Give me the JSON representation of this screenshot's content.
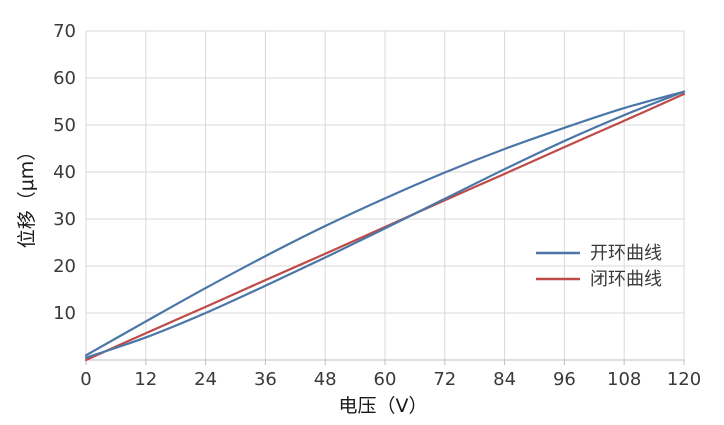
{
  "chart_data": {
    "type": "line",
    "xlabel": "电压（V）",
    "ylabel": "位移（μm）",
    "xlim": [
      0,
      120
    ],
    "ylim": [
      0,
      70
    ],
    "xticks": [
      "0",
      "12",
      "24",
      "36",
      "48",
      "60",
      "72",
      "84",
      "96",
      "108",
      "120"
    ],
    "yticks": [
      "10",
      "20",
      "30",
      "40",
      "50",
      "60",
      "70"
    ],
    "grid": true,
    "legend_position": "right",
    "series": [
      {
        "name": "开环曲线",
        "color": "#4a76a8",
        "loop": true,
        "x": [
          0,
          12,
          24,
          36,
          48,
          60,
          72,
          84,
          96,
          108,
          120,
          108,
          96,
          84,
          72,
          60,
          48,
          36,
          24,
          12,
          0
        ],
        "y": [
          0.5,
          4.8,
          10,
          15.8,
          21.8,
          28,
          34.3,
          40.6,
          46.6,
          52.1,
          57.1,
          53.6,
          49.4,
          44.9,
          39.9,
          34.4,
          28.5,
          22.1,
          15.3,
          8.2,
          1
        ],
        "values": [
          0.5,
          4.8,
          10,
          15.8,
          21.8,
          28,
          34.3,
          40.6,
          46.6,
          52.1,
          57.1,
          53.6,
          49.4,
          44.9,
          39.9,
          34.4,
          28.5,
          22.1,
          15.3,
          8.2,
          1
        ]
      },
      {
        "name": "闭环曲线",
        "color": "#be4b48",
        "x": [
          0,
          12,
          24,
          36,
          48,
          60,
          72,
          84,
          96,
          108,
          120
        ],
        "y": [
          0,
          5.7,
          11.3,
          17,
          22.6,
          28.3,
          34,
          39.6,
          45.3,
          50.9,
          56.6
        ],
        "values": [
          0,
          5.7,
          11.3,
          17,
          22.6,
          28.3,
          34,
          39.6,
          45.3,
          50.9,
          56.6
        ]
      }
    ]
  }
}
